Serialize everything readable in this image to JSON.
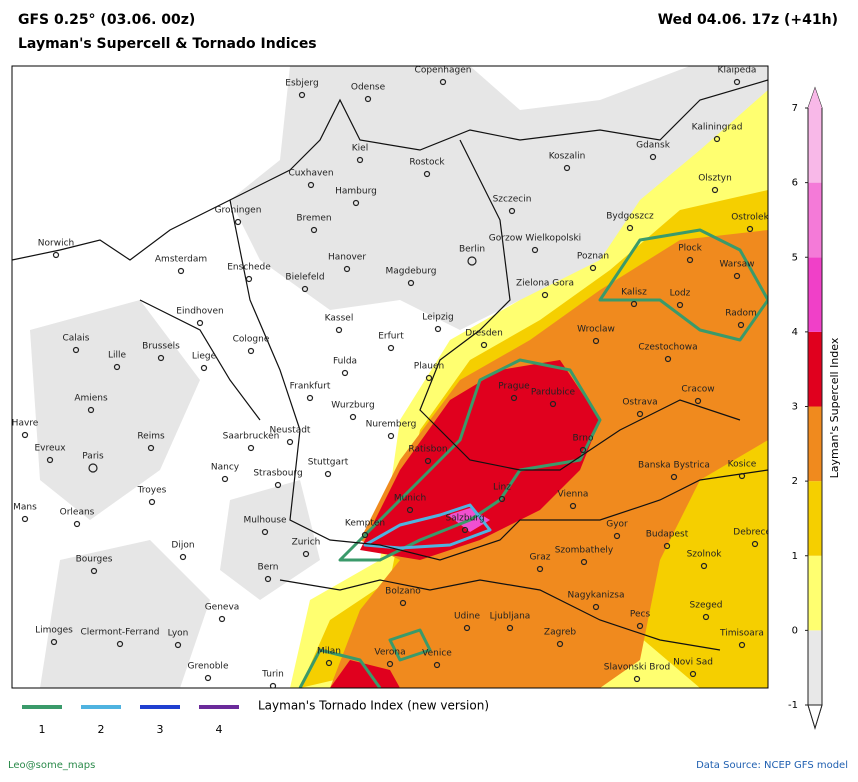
{
  "header": {
    "title": "GFS 0.25° (03.06. 00z)",
    "subtitle": "Layman's Supercell & Tornado Indices",
    "valid_time": "Wed 04.06. 17z (+41h)"
  },
  "map": {
    "cities": [
      "Copenhagen",
      "Esbjerg",
      "Odense",
      "Kiel",
      "Rostock",
      "Koszalin",
      "Gdansk",
      "Kaliningrad",
      "Klaipeda",
      "Olsztyn",
      "Cuxhaven",
      "Hamburg",
      "Szczecin",
      "Bydgoszcz",
      "Ostrolek",
      "Groningen",
      "Bremen",
      "Norwich",
      "Berlin",
      "Gorzow Wielkopolski",
      "Poznan",
      "Plock",
      "Warsaw",
      "Amsterdam",
      "Enschede",
      "Hanover",
      "Bielefeld",
      "Magdeburg",
      "Zielona Gora",
      "Kalisz",
      "Lodz",
      "Eindhoven",
      "Kassel",
      "Leipzig",
      "Dresden",
      "Wroclaw",
      "Radom",
      "Calais",
      "Brussels",
      "Liege",
      "Cologne",
      "Erfurt",
      "Lille",
      "Fulda",
      "Plauen",
      "Czestochowa",
      "Frankfurt",
      "Prague",
      "Pardubice",
      "Ostrava",
      "Cracow",
      "Amiens",
      "Wurzburg",
      "Nuremberg",
      "Neustadt",
      "Reims",
      "Saarbrucken",
      "Brno",
      "Paris",
      "Evreux",
      "Ratisbon",
      "Stuttgart",
      "Nancy",
      "Strasbourg",
      "Banska Bystrica",
      "Kosice",
      "Troyes",
      "Munich",
      "Linz",
      "Vienna",
      "Mans",
      "Orleans",
      "Mulhouse",
      "Kempten",
      "Salzburg",
      "Gyor",
      "Budapest",
      "Debrecen",
      "Dijon",
      "Zurich",
      "Szolnok",
      "Bern",
      "Graz",
      "Szombathely",
      "Bourges",
      "Nagykanizsa",
      "Geneva",
      "Bolzano",
      "Szeged",
      "Udine",
      "Ljubljana",
      "Pecs",
      "Timisoara",
      "Limoges",
      "Clermont-Ferrand",
      "Lyon",
      "Zagreb",
      "Verona",
      "Venice",
      "Grenoble",
      "Milan",
      "Slavonski Brod",
      "Novi Sad",
      "Turin",
      "Havre"
    ]
  },
  "colorbar": {
    "label": "Layman's Supercell Index",
    "ticks": [
      -1,
      0,
      1,
      2,
      3,
      4,
      5,
      6,
      7
    ]
  },
  "legend": {
    "title": "Layman's Tornado Index (new version)",
    "items": [
      {
        "label": "1",
        "color": "#3a9a6a"
      },
      {
        "label": "2",
        "color": "#4fb3e0"
      },
      {
        "label": "3",
        "color": "#1f3fd0"
      },
      {
        "label": "4",
        "color": "#6a2a9a"
      }
    ]
  },
  "footer": {
    "credit": "Leo@some_maps",
    "source": "Data Source: NCEP GFS model"
  }
}
